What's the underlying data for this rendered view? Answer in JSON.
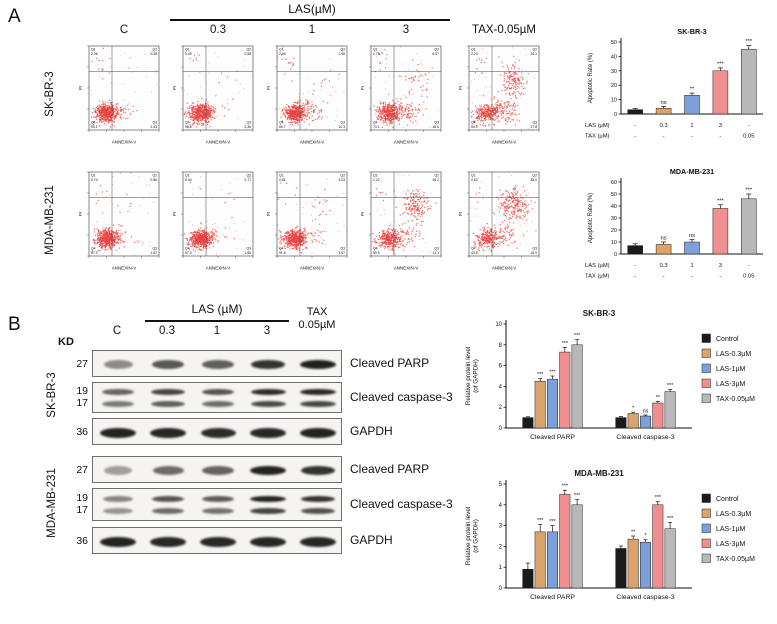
{
  "panels": {
    "a_label": "A",
    "b_label": "B"
  },
  "panel_a": {
    "las_header": "LAS(µM)",
    "col_labels": [
      "C",
      "0.3",
      "1",
      "3"
    ],
    "tax_col_label": "TAX-0.05µM",
    "flow_axis": {
      "x": "ANNEXIN-V",
      "y": "PI"
    },
    "rows": [
      {
        "name": "SK-BR-3",
        "plots": [
          {
            "q1": "2.06",
            "q2": "0.38",
            "q3": "2.43",
            "q4": "95.1"
          },
          {
            "q1": "0.49",
            "q2": "0.58",
            "q3": "2.36",
            "q4": "96.6"
          },
          {
            "q1": "2.06",
            "q2": "1.98",
            "q3": "10.3",
            "q4": "85.7"
          },
          {
            "q1": "1.75",
            "q2": "6.57",
            "q3": "18.6",
            "q4": "73.1"
          },
          {
            "q1": "2.23",
            "q2": "25.1",
            "q3": "17.8",
            "q4": "54.9"
          }
        ]
      },
      {
        "name": "MDA-MB-231",
        "plots": [
          {
            "q1": "0.74",
            "q2": "0.96",
            "q3": "1.67",
            "q4": "97.3"
          },
          {
            "q1": "0.34",
            "q2": "0.77",
            "q3": "1.66",
            "q4": "97.3"
          },
          {
            "q1": "0.81",
            "q2": "4.03",
            "q3": "3.67",
            "q4": "91.5"
          },
          {
            "q1": "1.22",
            "q2": "28.2",
            "q3": "11.1",
            "q4": "59.5"
          },
          {
            "q1": "0.62",
            "q2": "38.0",
            "q3": "16.9",
            "q4": "43.8"
          }
        ]
      }
    ]
  },
  "panel_b": {
    "las_header": "LAS (µM)",
    "kd_label": "KD",
    "lane_labels": [
      "C",
      "0.3",
      "1",
      "3"
    ],
    "tax_lane_label": [
      "TAX",
      "0.05µM"
    ],
    "groups": [
      {
        "name": "SK-BR-3",
        "blots": [
          {
            "kd": [
              "27"
            ],
            "protein": "Cleaved PARP",
            "double": false,
            "intensities": [
              0.3,
              0.62,
              0.58,
              0.85,
              0.97
            ]
          },
          {
            "kd": [
              "19",
              "17"
            ],
            "protein": "Cleaved caspase-3",
            "double": true,
            "intensities": [
              0.55,
              0.75,
              0.65,
              0.9,
              0.92
            ]
          },
          {
            "kd": [
              "36"
            ],
            "protein": "GAPDH",
            "double": false,
            "intensities": [
              0.95,
              0.93,
              0.9,
              0.93,
              0.95
            ]
          }
        ]
      },
      {
        "name": "MDA-MB-231",
        "blots": [
          {
            "kd": [
              "27"
            ],
            "protein": "Cleaved PARP",
            "double": false,
            "intensities": [
              0.18,
              0.5,
              0.55,
              0.95,
              0.85
            ]
          },
          {
            "kd": [
              "19",
              "17"
            ],
            "protein": "Cleaved caspase-3",
            "double": true,
            "intensities": [
              0.35,
              0.65,
              0.6,
              0.95,
              0.85
            ]
          },
          {
            "kd": [
              "36"
            ],
            "protein": "GAPDH",
            "double": false,
            "intensities": [
              0.95,
              0.92,
              0.92,
              0.93,
              0.93
            ]
          }
        ]
      }
    ]
  },
  "chart_data": [
    {
      "id": "apoptosis-skbr3",
      "type": "bar",
      "title": "SK-BR-3",
      "ylabel": "Apoptotic Rate (%)",
      "ylim": [
        0,
        50
      ],
      "yticks": [
        0,
        10,
        20,
        30,
        40,
        50
      ],
      "values": [
        3,
        4,
        13,
        30,
        45
      ],
      "errors": [
        0.8,
        1.2,
        1.5,
        2,
        2.5
      ],
      "sig": [
        "",
        "ns",
        "**",
        "***",
        "***"
      ],
      "bar_colors": [
        "#1a1a1a",
        "#d9a36a",
        "#7e9fd8",
        "#ef8f8f",
        "#b8b8b8"
      ],
      "dose_rows": [
        {
          "label": "LAS (µM)",
          "values": [
            "-",
            "0.3",
            "1",
            "3",
            "-"
          ]
        },
        {
          "label": "TAX (µM)",
          "values": [
            "-",
            "-",
            "-",
            "-",
            "0.05"
          ]
        }
      ]
    },
    {
      "id": "apoptosis-mdamb231",
      "type": "bar",
      "title": "MDA-MB-231",
      "ylabel": "Apoptotic Rate (%)",
      "ylim": [
        0,
        60
      ],
      "yticks": [
        0,
        10,
        20,
        30,
        40,
        50,
        60
      ],
      "values": [
        7,
        8,
        10,
        38,
        46
      ],
      "errors": [
        1.5,
        2,
        2,
        3,
        4
      ],
      "sig": [
        "",
        "ns",
        "ns",
        "***",
        "***"
      ],
      "bar_colors": [
        "#1a1a1a",
        "#d9a36a",
        "#7e9fd8",
        "#ef8f8f",
        "#b8b8b8"
      ],
      "dose_rows": [
        {
          "label": "LAS (µM)",
          "values": [
            "-",
            "0.3",
            "1",
            "3",
            "-"
          ]
        },
        {
          "label": "TAX (µM)",
          "values": [
            "-",
            "-",
            "-",
            "-",
            "0.05"
          ]
        }
      ]
    },
    {
      "id": "protein-skbr3",
      "type": "grouped-bar",
      "title": "SK-BR-3",
      "ylabel": [
        "Relative protein level",
        "(of GAPDH)"
      ],
      "ylim": [
        0,
        10
      ],
      "yticks": [
        0,
        2,
        4,
        6,
        8,
        10
      ],
      "categories": [
        "Cleaved PARP",
        "Cleaved caspase-3"
      ],
      "series": [
        {
          "name": "Control",
          "color": "#1a1a1a",
          "values": [
            1.0,
            1.0
          ],
          "errors": [
            0.08,
            0.1
          ],
          "sig": [
            "",
            ""
          ]
        },
        {
          "name": "LAS-0.3µM",
          "color": "#d9a36a",
          "values": [
            4.5,
            1.4
          ],
          "errors": [
            0.25,
            0.12
          ],
          "sig": [
            "***",
            "*"
          ]
        },
        {
          "name": "LAS-1µM",
          "color": "#7e9fd8",
          "values": [
            4.7,
            1.15
          ],
          "errors": [
            0.3,
            0.1
          ],
          "sig": [
            "***",
            "ns"
          ]
        },
        {
          "name": "LAS-3µM",
          "color": "#ef8f8f",
          "values": [
            7.3,
            2.4
          ],
          "errors": [
            0.45,
            0.15
          ],
          "sig": [
            "***",
            "**"
          ]
        },
        {
          "name": "TAX-0.05µM",
          "color": "#b8b8b8",
          "values": [
            8.0,
            3.5
          ],
          "errors": [
            0.5,
            0.2
          ],
          "sig": [
            "***",
            "***"
          ]
        }
      ]
    },
    {
      "id": "protein-mdamb231",
      "type": "grouped-bar",
      "title": "MDA-MB-231",
      "ylabel": [
        "Relative protein level",
        "(of GAPDH)"
      ],
      "ylim": [
        0,
        5
      ],
      "yticks": [
        0,
        1,
        2,
        3,
        4,
        5
      ],
      "categories": [
        "Cleaved PARP",
        "Cleaved caspase-3"
      ],
      "series": [
        {
          "name": "Control",
          "color": "#1a1a1a",
          "values": [
            0.9,
            1.9
          ],
          "errors": [
            0.3,
            0.12
          ],
          "sig": [
            "",
            ""
          ]
        },
        {
          "name": "LAS-0.3µM",
          "color": "#d9a36a",
          "values": [
            2.7,
            2.35
          ],
          "errors": [
            0.35,
            0.15
          ],
          "sig": [
            "***",
            "**"
          ]
        },
        {
          "name": "LAS-1µM",
          "color": "#7e9fd8",
          "values": [
            2.7,
            2.2
          ],
          "errors": [
            0.3,
            0.12
          ],
          "sig": [
            "***",
            "*"
          ]
        },
        {
          "name": "LAS-3µM",
          "color": "#ef8f8f",
          "values": [
            4.5,
            4.0
          ],
          "errors": [
            0.2,
            0.15
          ],
          "sig": [
            "***",
            "***"
          ]
        },
        {
          "name": "TAX-0.05µM",
          "color": "#b8b8b8",
          "values": [
            4.0,
            2.85
          ],
          "errors": [
            0.25,
            0.3
          ],
          "sig": [
            "***",
            "***"
          ]
        }
      ]
    }
  ]
}
